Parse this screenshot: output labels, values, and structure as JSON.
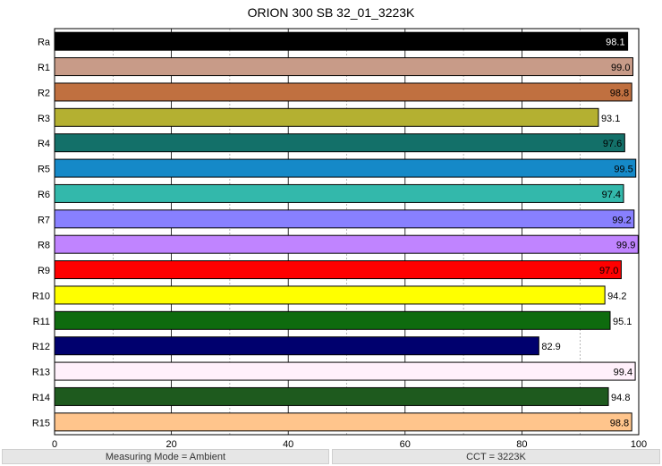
{
  "chart_data": {
    "type": "bar",
    "orientation": "horizontal",
    "title": "ORION 300 SB 32_01_3223K",
    "categories": [
      "Ra",
      "R1",
      "R2",
      "R3",
      "R4",
      "R5",
      "R6",
      "R7",
      "R8",
      "R9",
      "R10",
      "R11",
      "R12",
      "R13",
      "R14",
      "R15"
    ],
    "values": [
      98.1,
      99.0,
      98.8,
      93.1,
      97.6,
      99.5,
      97.4,
      99.2,
      99.9,
      97.0,
      94.2,
      95.1,
      82.9,
      99.4,
      94.8,
      98.8
    ],
    "labels": [
      "98.1",
      "99.0",
      "98.8",
      "93.1",
      "97.6",
      "99.5",
      "97.4",
      "99.2",
      "99.9",
      "97.0",
      "94.2",
      "95.1",
      "82.9",
      "99.4",
      "94.8",
      "98.8"
    ],
    "colors": [
      "#000000",
      "#c89b88",
      "#c07040",
      "#b4b031",
      "#137069",
      "#1589c8",
      "#33b8ab",
      "#8880ff",
      "#c084ff",
      "#ff0000",
      "#ffff00",
      "#0e6b0e",
      "#00006e",
      "#fff0fb",
      "#1e5a1e",
      "#ffc58c"
    ],
    "label_inside": [
      true,
      true,
      true,
      false,
      true,
      true,
      true,
      true,
      true,
      true,
      false,
      false,
      false,
      true,
      false,
      true
    ],
    "xlim": [
      0,
      100
    ],
    "xticks": [
      0,
      20,
      40,
      60,
      80,
      100
    ],
    "grid": true,
    "xlabel": "",
    "ylabel": ""
  },
  "footer": {
    "left": "Measuring Mode = Ambient",
    "right": "CCT = 3223K"
  }
}
